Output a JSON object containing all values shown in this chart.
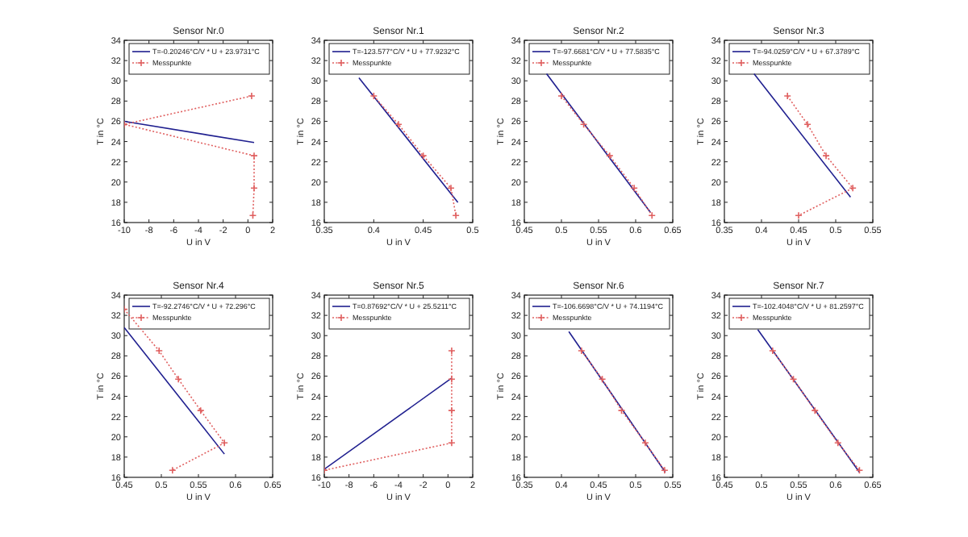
{
  "chart_data": [
    {
      "type": "line",
      "title": "Sensor Nr.0",
      "xlabel": "U in V",
      "ylabel": "T in °C",
      "xlim": [
        -10,
        2
      ],
      "xticks": [
        -10,
        -8,
        -6,
        -4,
        -2,
        0,
        2
      ],
      "ylim": [
        16,
        34
      ],
      "yticks": [
        16,
        18,
        20,
        22,
        24,
        26,
        28,
        30,
        32,
        34
      ],
      "legend": "top",
      "series": [
        {
          "name": "T=-0.20246°C/V * U + 23.9731°C",
          "color": "#1f1f8f",
          "line_style": "solid",
          "marker": "none",
          "x": [
            -10,
            0.5
          ],
          "values": [
            26.0,
            23.9
          ]
        },
        {
          "name": "Messpunkte",
          "color": "#e06060",
          "line_style": "dotted",
          "marker": "cross",
          "x": [
            0.3,
            -10,
            0.5,
            0.5,
            0.4
          ],
          "values": [
            28.5,
            25.7,
            22.6,
            19.4,
            16.7
          ]
        }
      ]
    },
    {
      "type": "line",
      "title": "Sensor Nr.1",
      "xlabel": "U in V",
      "ylabel": "T in °C",
      "xlim": [
        0.35,
        0.5
      ],
      "xticks": [
        0.35,
        0.4,
        0.45,
        0.5
      ],
      "ylim": [
        16,
        34
      ],
      "yticks": [
        16,
        18,
        20,
        22,
        24,
        26,
        28,
        30,
        32,
        34
      ],
      "legend": "top",
      "series": [
        {
          "name": "T=-123.577°C/V * U + 77.9232°C",
          "color": "#1f1f8f",
          "line_style": "solid",
          "marker": "none",
          "x": [
            0.385,
            0.485
          ],
          "values": [
            30.3,
            18.0
          ]
        },
        {
          "name": "Messpunkte",
          "color": "#e06060",
          "line_style": "dotted",
          "marker": "cross",
          "x": [
            0.4,
            0.425,
            0.45,
            0.478,
            0.483
          ],
          "values": [
            28.5,
            25.7,
            22.6,
            19.4,
            16.7
          ]
        }
      ]
    },
    {
      "type": "line",
      "title": "Sensor Nr.2",
      "xlabel": "U in V",
      "ylabel": "T in °C",
      "xlim": [
        0.45,
        0.65
      ],
      "xticks": [
        0.45,
        0.5,
        0.55,
        0.6,
        0.65
      ],
      "ylim": [
        16,
        34
      ],
      "yticks": [
        16,
        18,
        20,
        22,
        24,
        26,
        28,
        30,
        32,
        34
      ],
      "legend": "top",
      "series": [
        {
          "name": "T=-97.6681°C/V * U + 77.5835°C",
          "color": "#1f1f8f",
          "line_style": "solid",
          "marker": "none",
          "x": [
            0.48,
            0.62
          ],
          "values": [
            30.7,
            17.0
          ]
        },
        {
          "name": "Messpunkte",
          "color": "#e06060",
          "line_style": "dotted",
          "marker": "cross",
          "x": [
            0.5,
            0.53,
            0.565,
            0.598,
            0.622
          ],
          "values": [
            28.5,
            25.7,
            22.6,
            19.4,
            16.7
          ]
        }
      ]
    },
    {
      "type": "line",
      "title": "Sensor Nr.3",
      "xlabel": "U in V",
      "ylabel": "T in °C",
      "xlim": [
        0.35,
        0.55
      ],
      "xticks": [
        0.35,
        0.4,
        0.45,
        0.5,
        0.55
      ],
      "ylim": [
        16,
        34
      ],
      "yticks": [
        16,
        18,
        20,
        22,
        24,
        26,
        28,
        30,
        32,
        34
      ],
      "legend": "top",
      "series": [
        {
          "name": "T=-94.0259°C/V * U + 67.3789°C",
          "color": "#1f1f8f",
          "line_style": "solid",
          "marker": "none",
          "x": [
            0.39,
            0.52
          ],
          "values": [
            30.7,
            18.5
          ]
        },
        {
          "name": "Messpunkte",
          "color": "#e06060",
          "line_style": "dotted",
          "marker": "cross",
          "x": [
            0.435,
            0.462,
            0.487,
            0.523,
            0.45
          ],
          "values": [
            28.5,
            25.7,
            22.6,
            19.4,
            16.7
          ]
        }
      ]
    },
    {
      "type": "line",
      "title": "Sensor Nr.4",
      "xlabel": "U in V",
      "ylabel": "T in °C",
      "xlim": [
        0.45,
        0.65
      ],
      "xticks": [
        0.45,
        0.5,
        0.55,
        0.6,
        0.65
      ],
      "ylim": [
        16,
        34
      ],
      "yticks": [
        16,
        18,
        20,
        22,
        24,
        26,
        28,
        30,
        32,
        34
      ],
      "legend": "top",
      "series": [
        {
          "name": "T=-92.2746°C/V * U + 72.296°C",
          "color": "#1f1f8f",
          "line_style": "solid",
          "marker": "none",
          "x": [
            0.45,
            0.585
          ],
          "values": [
            30.8,
            18.3
          ]
        },
        {
          "name": "Messpunkte",
          "color": "#e06060",
          "line_style": "dotted",
          "marker": "cross",
          "x": [
            0.45,
            0.497,
            0.523,
            0.553,
            0.585,
            0.515
          ],
          "values": [
            32.6,
            28.5,
            25.7,
            22.6,
            19.4,
            16.7
          ]
        }
      ]
    },
    {
      "type": "line",
      "title": "Sensor Nr.5",
      "xlabel": "U in V",
      "ylabel": "T in °C",
      "xlim": [
        -10,
        2
      ],
      "xticks": [
        -10,
        -8,
        -6,
        -4,
        -2,
        0,
        2
      ],
      "ylim": [
        16,
        34
      ],
      "yticks": [
        16,
        18,
        20,
        22,
        24,
        26,
        28,
        30,
        32,
        34
      ],
      "legend": "top",
      "series": [
        {
          "name": "T=0.87692°C/V * U + 25.5211°C",
          "color": "#1f1f8f",
          "line_style": "solid",
          "marker": "none",
          "x": [
            -10,
            0.3
          ],
          "values": [
            16.8,
            25.8
          ]
        },
        {
          "name": "Messpunkte",
          "color": "#e06060",
          "line_style": "dotted",
          "marker": "cross",
          "x": [
            0.3,
            0.3,
            0.3,
            0.3,
            -10
          ],
          "values": [
            28.5,
            25.7,
            22.6,
            19.4,
            16.7
          ]
        }
      ]
    },
    {
      "type": "line",
      "title": "Sensor Nr.6",
      "xlabel": "U in V",
      "ylabel": "T in °C",
      "xlim": [
        0.35,
        0.55
      ],
      "xticks": [
        0.35,
        0.4,
        0.45,
        0.5,
        0.55
      ],
      "ylim": [
        16,
        34
      ],
      "yticks": [
        16,
        18,
        20,
        22,
        24,
        26,
        28,
        30,
        32,
        34
      ],
      "legend": "top",
      "series": [
        {
          "name": "T=-106.6698°C/V * U + 74.1194°C",
          "color": "#1f1f8f",
          "line_style": "solid",
          "marker": "none",
          "x": [
            0.41,
            0.54
          ],
          "values": [
            30.4,
            16.5
          ]
        },
        {
          "name": "Messpunkte",
          "color": "#e06060",
          "line_style": "dotted",
          "marker": "cross",
          "x": [
            0.427,
            0.455,
            0.481,
            0.513,
            0.539
          ],
          "values": [
            28.5,
            25.7,
            22.6,
            19.4,
            16.7
          ]
        }
      ]
    },
    {
      "type": "line",
      "title": "Sensor Nr.7",
      "xlabel": "U in V",
      "ylabel": "T in °C",
      "xlim": [
        0.45,
        0.65
      ],
      "xticks": [
        0.45,
        0.5,
        0.55,
        0.6,
        0.65
      ],
      "ylim": [
        16,
        34
      ],
      "yticks": [
        16,
        18,
        20,
        22,
        24,
        26,
        28,
        30,
        32,
        34
      ],
      "legend": "top",
      "series": [
        {
          "name": "T=-102.4048°C/V * U + 81.2597°C",
          "color": "#1f1f8f",
          "line_style": "solid",
          "marker": "none",
          "x": [
            0.495,
            0.632
          ],
          "values": [
            30.6,
            16.5
          ]
        },
        {
          "name": "Messpunkte",
          "color": "#e06060",
          "line_style": "dotted",
          "marker": "cross",
          "x": [
            0.515,
            0.543,
            0.572,
            0.603,
            0.632
          ],
          "values": [
            28.5,
            25.7,
            22.6,
            19.4,
            16.7
          ]
        }
      ]
    }
  ]
}
